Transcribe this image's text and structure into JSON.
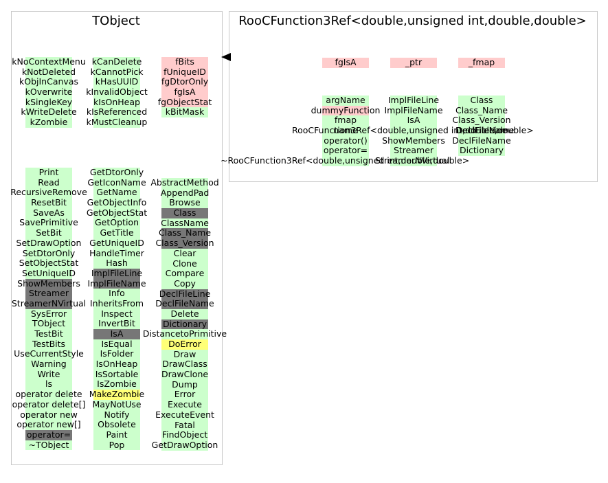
{
  "tobject": {
    "title": "TObject",
    "columns": [
      {
        "left": 37,
        "top": 83,
        "items": [
          [
            "kNoContextMenu",
            "g"
          ],
          [
            "kNotDeleted",
            "g"
          ],
          [
            "kObjInCanvas",
            "g"
          ],
          [
            "kOverwrite",
            "g"
          ],
          [
            "kSingleKey",
            "g"
          ],
          [
            "kWriteDelete",
            "g"
          ],
          [
            "kZombie",
            "g"
          ]
        ]
      },
      {
        "left": 136,
        "top": 83,
        "items": [
          [
            "kCanDelete",
            "g"
          ],
          [
            "kCannotPick",
            "g"
          ],
          [
            "kHasUUID",
            "g"
          ],
          [
            "kInvalidObject",
            "g"
          ],
          [
            "kIsOnHeap",
            "g"
          ],
          [
            "kIsReferenced",
            "g"
          ],
          [
            "kMustCleanup",
            "g"
          ]
        ]
      },
      {
        "left": 235,
        "top": 83,
        "items": [
          [
            "fBits",
            "p"
          ],
          [
            "fUniqueID",
            "p"
          ],
          [
            "fgDtorOnly",
            "p"
          ],
          [
            "fgIsA",
            "p"
          ],
          [
            "fgObjectStat",
            "p"
          ],
          [
            "kBitMask",
            "g"
          ]
        ]
      },
      {
        "left": 37,
        "top": 244,
        "items": [
          [
            "Print",
            "g"
          ],
          [
            "Read",
            "g"
          ],
          [
            "RecursiveRemove",
            "g"
          ],
          [
            "ResetBit",
            "g"
          ],
          [
            "SaveAs",
            "g"
          ],
          [
            "SavePrimitive",
            "g"
          ],
          [
            "SetBit",
            "g"
          ],
          [
            "SetDrawOption",
            "g"
          ],
          [
            "SetDtorOnly",
            "g"
          ],
          [
            "SetObjectStat",
            "g"
          ],
          [
            "SetUniqueID",
            "g"
          ],
          [
            "ShowMembers",
            "d"
          ],
          [
            "Streamer",
            "d"
          ],
          [
            "StreamerNVirtual",
            "d"
          ],
          [
            "SysError",
            "g"
          ],
          [
            "TObject",
            "g"
          ],
          [
            "TestBit",
            "g"
          ],
          [
            "TestBits",
            "g"
          ],
          [
            "UseCurrentStyle",
            "g"
          ],
          [
            "Warning",
            "g"
          ],
          [
            "Write",
            "g"
          ],
          [
            "ls",
            "g"
          ],
          [
            "operator delete",
            "g"
          ],
          [
            "operator delete[]",
            "g"
          ],
          [
            "operator new",
            "g"
          ],
          [
            "operator new[]",
            "g"
          ],
          [
            "operator=",
            "d"
          ],
          [
            "~TObject",
            "g"
          ]
        ]
      },
      {
        "left": 136,
        "top": 244,
        "items": [
          [
            "GetDtorOnly",
            "g"
          ],
          [
            "GetIconName",
            "g"
          ],
          [
            "GetName",
            "g"
          ],
          [
            "GetObjectInfo",
            "g"
          ],
          [
            "GetObjectStat",
            "g"
          ],
          [
            "GetOption",
            "g"
          ],
          [
            "GetTitle",
            "g"
          ],
          [
            "GetUniqueID",
            "g"
          ],
          [
            "HandleTimer",
            "g"
          ],
          [
            "Hash",
            "g"
          ],
          [
            "ImplFileLine",
            "d"
          ],
          [
            "ImplFileName",
            "d"
          ],
          [
            "Info",
            "g"
          ],
          [
            "InheritsFrom",
            "g"
          ],
          [
            "Inspect",
            "g"
          ],
          [
            "InvertBit",
            "g"
          ],
          [
            "IsA",
            "d"
          ],
          [
            "IsEqual",
            "g"
          ],
          [
            "IsFolder",
            "g"
          ],
          [
            "IsOnHeap",
            "g"
          ],
          [
            "IsSortable",
            "g"
          ],
          [
            "IsZombie",
            "g"
          ],
          [
            "MakeZombie",
            "y"
          ],
          [
            "MayNotUse",
            "g"
          ],
          [
            "Notify",
            "g"
          ],
          [
            "Obsolete",
            "g"
          ],
          [
            "Paint",
            "g"
          ],
          [
            "Pop",
            "g"
          ]
        ]
      },
      {
        "left": 235,
        "top": 259,
        "items": [
          [
            "AbstractMethod",
            "g"
          ],
          [
            "AppendPad",
            "g"
          ],
          [
            "Browse",
            "g"
          ],
          [
            "Class",
            "d"
          ],
          [
            "ClassName",
            "g"
          ],
          [
            "Class_Name",
            "d"
          ],
          [
            "Class_Version",
            "d"
          ],
          [
            "Clear",
            "g"
          ],
          [
            "Clone",
            "g"
          ],
          [
            "Compare",
            "g"
          ],
          [
            "Copy",
            "g"
          ],
          [
            "DeclFileLine",
            "d"
          ],
          [
            "DeclFileName",
            "d"
          ],
          [
            "Delete",
            "g"
          ],
          [
            "Dictionary",
            "d"
          ],
          [
            "DistancetoPrimitive",
            "g"
          ],
          [
            "DoError",
            "y"
          ],
          [
            "Draw",
            "g"
          ],
          [
            "DrawClass",
            "g"
          ],
          [
            "DrawClone",
            "g"
          ],
          [
            "Dump",
            "g"
          ],
          [
            "Error",
            "g"
          ],
          [
            "Execute",
            "g"
          ],
          [
            "ExecuteEvent",
            "g"
          ],
          [
            "Fatal",
            "g"
          ],
          [
            "FindObject",
            "g"
          ],
          [
            "GetDrawOption",
            "g"
          ]
        ]
      }
    ]
  },
  "roocfunction": {
    "title": "RooCFunction3Ref<double,unsigned int,double,double>",
    "columns": [
      {
        "left": 469,
        "top": 84,
        "items": [
          [
            "fgIsA",
            "p"
          ]
        ]
      },
      {
        "left": 568,
        "top": 84,
        "items": [
          [
            "_ptr",
            "p"
          ]
        ]
      },
      {
        "left": 667,
        "top": 84,
        "items": [
          [
            "_fmap",
            "p"
          ]
        ]
      },
      {
        "left": 469,
        "top": 139,
        "items": [
          [
            "argName",
            "g"
          ],
          [
            "dummyFunction",
            "p"
          ],
          [
            "fmap",
            "g"
          ],
          [
            "name",
            "g"
          ],
          [
            "operator()",
            "g"
          ],
          [
            "operator=",
            "g"
          ],
          [
            "",
            "g"
          ]
        ]
      },
      {
        "left": 568,
        "top": 139,
        "items": [
          [
            "ImplFileLine",
            "g"
          ],
          [
            "ImplFileName",
            "g"
          ],
          [
            "IsA",
            "g"
          ],
          [
            "",
            "g"
          ],
          [
            "ShowMembers",
            "g"
          ],
          [
            "Streamer",
            "g"
          ],
          [
            "",
            "g"
          ]
        ]
      },
      {
        "left": 667,
        "top": 139,
        "items": [
          [
            "Class",
            "g"
          ],
          [
            "Class_Name",
            "g"
          ],
          [
            "Class_Version",
            "g"
          ],
          [
            "DeclFileLine",
            "g"
          ],
          [
            "DeclFileName",
            "g"
          ],
          [
            "Dictionary",
            "g"
          ]
        ]
      }
    ],
    "overflow_labels": [
      "RooCFunction3Ref<double,unsigned int,double,double>",
      "~RooCFunction3Ref<double,unsigned int,double,double>",
      "StreamerNVirtual",
      "DeclFileName"
    ]
  },
  "colors": {
    "public": "#ccffcc",
    "private": "#ffcccc",
    "inherited": "#777777",
    "protected": "#ffff77",
    "border": "#c8c8c8"
  }
}
